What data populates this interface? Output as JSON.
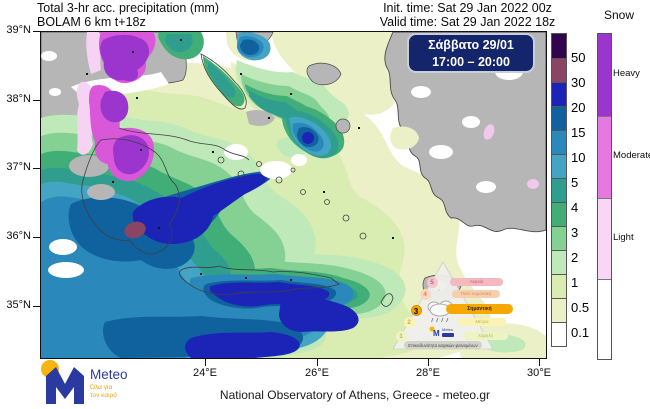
{
  "header": {
    "title_line1": "Total 3-hr acc. precipitation (mm)",
    "title_line2": "BOLAM 6 km t+18z",
    "init_time": "Init. time: Sat 29 Jan 2022 00z",
    "valid_time": "Valid time: Sat 29 Jan 2022 18z"
  },
  "time_box": {
    "date": "Σάββατο 29/01",
    "hours": "17:00 – 20:00",
    "bg_color": "#15256b"
  },
  "axes": {
    "lat_labels": [
      "39°N",
      "38°N",
      "37°N",
      "36°N",
      "35°N"
    ],
    "lon_labels": [
      "24°E",
      "26°E",
      "28°E",
      "30°E"
    ]
  },
  "legend_precip": {
    "unit": "mm",
    "labels": [
      "50",
      "30",
      "20",
      "15",
      "10",
      "5",
      "4",
      "3",
      "2",
      "1",
      "0.5",
      "0.1"
    ],
    "band_colors": [
      "#31054e",
      "#8a4464",
      "#1c24b8",
      "#10629e",
      "#2a88ba",
      "#44a4c4",
      "#2f9e8e",
      "#41ae78",
      "#85d194",
      "#bfe9b9",
      "#d9edb2",
      "#ecf0c6",
      "#ffffff"
    ]
  },
  "legend_snow": {
    "title": "Snow",
    "labels": [
      "Heavy",
      "Moderate",
      "Light"
    ],
    "band_colors": [
      "#9b35ce",
      "#e678e2",
      "#f8d6f4",
      "#ffffff"
    ]
  },
  "hazard_pyramid": {
    "active_level": "3",
    "caption": "Επικινδυνότητα καιρικών φαινομένων",
    "levels": [
      {
        "num": "5",
        "label": "Ακραία",
        "pill_bg": "#f3b9be",
        "text": "#c9606e",
        "badge_bg": "#f4c6cc"
      },
      {
        "num": "4",
        "label": "Πολύ σημαντική",
        "pill_bg": "#f7cfae",
        "text": "#dd8a4d",
        "badge_bg": "#f8d8c0"
      },
      {
        "num": "3",
        "label": "Σημαντική",
        "pill_bg": "#f5a800",
        "text": "#2e2000",
        "badge_bg": "#f5a800"
      },
      {
        "num": "2",
        "label": "Μέτρια",
        "pill_bg": "#faf3b5",
        "text": "#c0b050",
        "badge_bg": "#faf3b5"
      },
      {
        "num": "1",
        "label": "Χαμηλή",
        "pill_bg": "#eef3c3",
        "text": "#aebd63",
        "badge_bg": "#eef3c3"
      }
    ]
  },
  "branding": {
    "logo_text": "Meteo",
    "tagline_line1": "Όλα για",
    "tagline_line2": "τον καιρό"
  },
  "footer": {
    "attribution": "National Observatory of Athens, Greece - meteo.gr"
  }
}
